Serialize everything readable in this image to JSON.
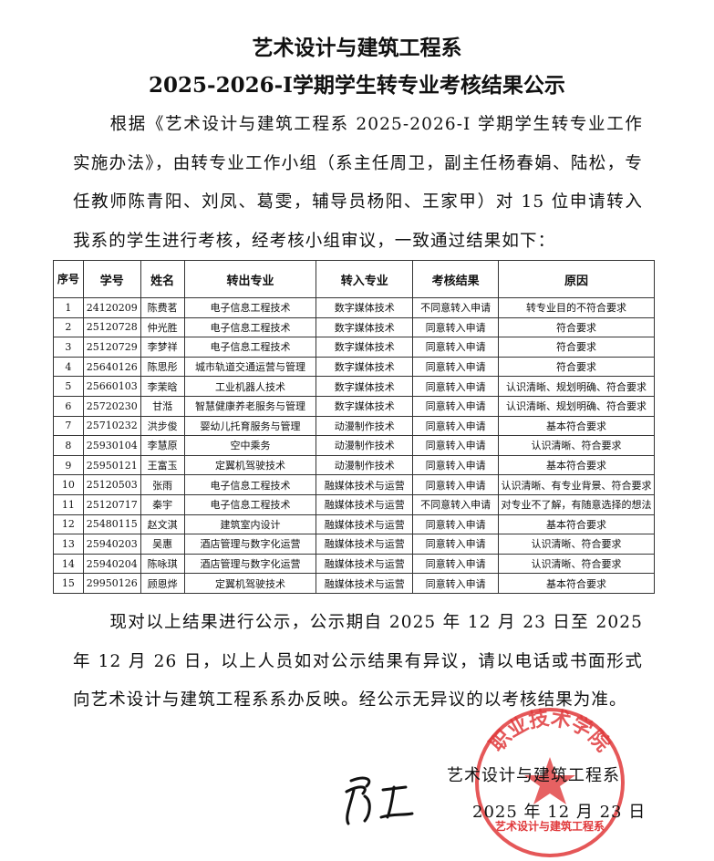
{
  "title_line1": "艺术设计与建筑工程系",
  "title_line2": "2025-2026-I学期学生转专业考核结果公示",
  "intro": "根据《艺术设计与建筑工程系 2025-2026-I 学期学生转专业工作实施办法》，由转专业工作小组（系主任周卫，副主任杨春娟、陆松，专任教师陈青阳、刘凤、葛雯，辅导员杨阳、王家甲）对 15 位申请转入我系的学生进行考核，经考核小组审议，一致通过结果如下：",
  "table": {
    "headers": [
      "序号",
      "学号",
      "姓名",
      "转出专业",
      "转入专业",
      "考核结果",
      "原因"
    ],
    "rows": [
      [
        "1",
        "24120209",
        "陈费茗",
        "电子信息工程技术",
        "数字媒体技术",
        "不同意转入申请",
        "转专业目的不符合要求"
      ],
      [
        "2",
        "25120728",
        "仲光胜",
        "电子信息工程技术",
        "数字媒体技术",
        "同意转入申请",
        "符合要求"
      ],
      [
        "3",
        "25120729",
        "李梦祥",
        "电子信息工程技术",
        "数字媒体技术",
        "同意转入申请",
        "符合要求"
      ],
      [
        "4",
        "25640126",
        "陈思彤",
        "城市轨道交通运营与管理",
        "数字媒体技术",
        "同意转入申请",
        "符合要求"
      ],
      [
        "5",
        "25660103",
        "李茉晗",
        "工业机器人技术",
        "数字媒体技术",
        "同意转入申请",
        "认识清晰、规划明确、符合要求"
      ],
      [
        "6",
        "25720230",
        "甘湉",
        "智慧健康养老服务与管理",
        "数字媒体技术",
        "同意转入申请",
        "认识清晰、规划明确、符合要求"
      ],
      [
        "7",
        "25710232",
        "洪步俊",
        "婴幼儿托育服务与管理",
        "动漫制作技术",
        "同意转入申请",
        "基本符合要求"
      ],
      [
        "8",
        "25930104",
        "李慧原",
        "空中乘务",
        "动漫制作技术",
        "同意转入申请",
        "认识清晰、符合要求"
      ],
      [
        "9",
        "25950121",
        "王富玉",
        "定翼机驾驶技术",
        "动漫制作技术",
        "同意转入申请",
        "基本符合要求"
      ],
      [
        "10",
        "25120503",
        "张雨",
        "电子信息工程技术",
        "融媒体技术与运营",
        "同意转入申请",
        "认识清晰、有专业背景、符合要求"
      ],
      [
        "11",
        "25120717",
        "秦宇",
        "电子信息工程技术",
        "融媒体技术与运营",
        "不同意转入申请",
        "对专业不了解，有随意选择的想法"
      ],
      [
        "12",
        "25480115",
        "赵文淇",
        "建筑室内设计",
        "融媒体技术与运营",
        "同意转入申请",
        "基本符合要求"
      ],
      [
        "13",
        "25940203",
        "吴惠",
        "酒店管理与数字化运营",
        "融媒体技术与运营",
        "同意转入申请",
        "认识清晰、符合要求"
      ],
      [
        "14",
        "25940204",
        "陈咏琪",
        "酒店管理与数字化运营",
        "融媒体技术与运营",
        "同意转入申请",
        "认识清晰、符合要求"
      ],
      [
        "15",
        "29950126",
        "顾恩烨",
        "定翼机驾驶技术",
        "融媒体技术与运营",
        "同意转入申请",
        "基本符合要求"
      ]
    ]
  },
  "closing": "现对以上结果进行公示，公示期自 2025 年 12 月 23 日至 2025 年 12 月 26 日，以上人员如对公示结果有异议，请以电话或书面形式向艺术设计与建筑工程系系办反映。经公示无异议的以考核结果为准。",
  "signature_org": "艺术设计与建筑工程系",
  "signature_date": "2025 年 12 月 23 日",
  "seal_text_top": "职业技术学院",
  "seal_text_bottom": "艺术设计与建筑工程系",
  "seal_color": "#e0393b"
}
